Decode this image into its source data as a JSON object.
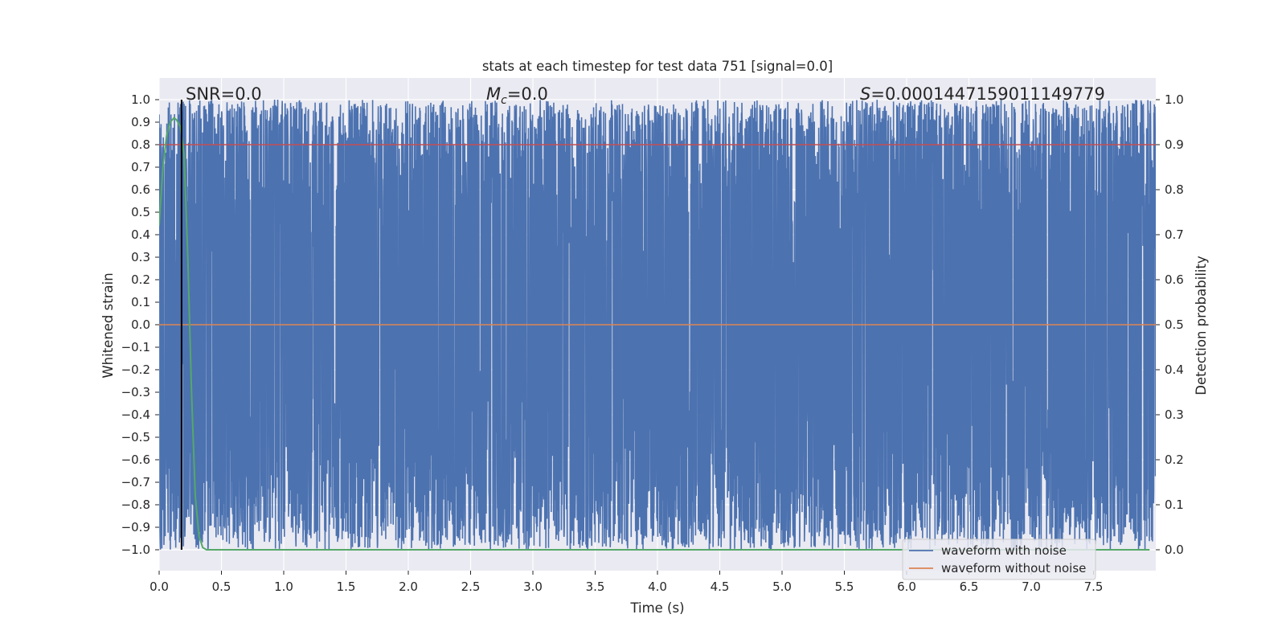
{
  "chart_data": {
    "type": "line",
    "title": "stats at each timestep for test data 751 [signal=0.0]",
    "xlabel": "Time (s)",
    "ylabel_left": "Whitened strain",
    "ylabel_right": "Detection probability",
    "xlim": [
      0.0,
      8.0
    ],
    "ylim_left": [
      -1.0,
      1.0
    ],
    "ylim_right": [
      0.0,
      1.0
    ],
    "x_ticks": [
      "0.0",
      "0.5",
      "1.0",
      "1.5",
      "2.0",
      "2.5",
      "3.0",
      "3.5",
      "4.0",
      "4.5",
      "5.0",
      "5.5",
      "6.0",
      "6.5",
      "7.0",
      "7.5"
    ],
    "y_ticks_left": [
      "1.0",
      "0.9",
      "0.8",
      "0.7",
      "0.6",
      "0.5",
      "0.4",
      "0.3",
      "0.2",
      "0.1",
      "0.0",
      "−0.1",
      "−0.2",
      "−0.3",
      "−0.4",
      "−0.5",
      "−0.6",
      "−0.7",
      "−0.8",
      "−0.9",
      "−1.0"
    ],
    "y_ticks_right": [
      "1.0",
      "0.9",
      "0.8",
      "0.7",
      "0.6",
      "0.5",
      "0.4",
      "0.3",
      "0.2",
      "0.1",
      "0.0"
    ],
    "grid": true,
    "legend_position": "lower-right",
    "annotations": {
      "snr": "SNR=0.0",
      "mc_symbol": "M",
      "mc_sub": "c",
      "mc_value": "=0.0",
      "s_symbol": "S",
      "s_value": "=0.0001447159011149779"
    },
    "series": [
      {
        "name": "waveform with noise",
        "color": "#4c72b0",
        "description_values": "dense noise spanning approximately -1.0 to 1.0 across 0.0-8.0 s"
      },
      {
        "name": "waveform without noise",
        "color": "#dd8452",
        "values_constant": 0.0
      },
      {
        "name": "",
        "axis": "right",
        "color": "#55a868",
        "x": [
          0.0,
          0.03,
          0.06,
          0.09,
          0.12,
          0.14,
          0.17,
          0.2,
          0.23,
          0.26,
          0.29,
          0.32,
          0.35,
          0.38,
          0.5,
          1.0,
          2.0,
          3.0,
          4.0,
          5.0,
          6.0,
          7.0,
          7.95
        ],
        "y": [
          0.72,
          0.85,
          0.92,
          0.95,
          0.96,
          0.955,
          0.94,
          0.88,
          0.65,
          0.35,
          0.12,
          0.03,
          0.005,
          0.0,
          0.0,
          0.0,
          0.0,
          0.0,
          0.0,
          0.0,
          0.0,
          0.0,
          0.0
        ]
      }
    ],
    "threshold_right": 0.9,
    "threshold_color": "#c44e52",
    "marker_x": 0.18
  }
}
